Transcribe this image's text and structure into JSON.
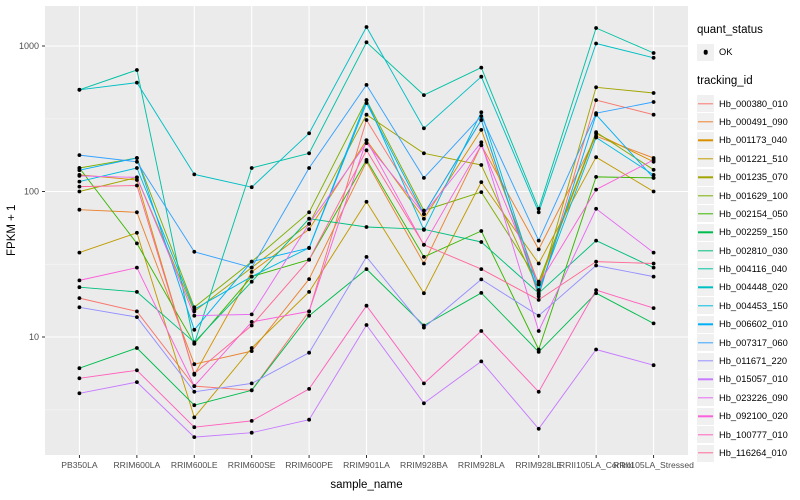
{
  "legend": {
    "quant_status_title": "quant_status",
    "quant_status_items": [
      {
        "label": "OK",
        "shape": "point",
        "color": "#000000"
      }
    ],
    "tracking_id_title": "tracking_id"
  },
  "chart_data": {
    "type": "line",
    "title": "",
    "xlabel": "sample_name",
    "ylabel": "FPKM + 1",
    "y_scale": "log10",
    "ylim": [
      1.55,
      1850
    ],
    "y_major_ticks": [
      10,
      100,
      1000
    ],
    "y_minor_ticks": [
      3.16,
      31.6,
      316
    ],
    "grid": true,
    "legend_position": "right",
    "panel_color": "#EBEBEB",
    "gridline_major_color": "#FFFFFF",
    "gridline_minor_color": "#F4F4F4",
    "point_color": "#000000",
    "quant_status": "OK",
    "x_categories": [
      "PB350LA",
      "RRIM600LA",
      "RRIM600LE",
      "RRIM600SE",
      "RRIM600PE",
      "RRIM901LA",
      "RRIM928BA",
      "RRIM928LA",
      "RRIM928LE",
      "RRII105LA_Control",
      "RRII105LA_Stressed"
    ],
    "series": [
      {
        "name": "Hb_000380_010",
        "color": "#F8766D",
        "values": [
          18.5,
          15,
          4.6,
          4.3,
          15,
          310,
          70,
          310,
          19,
          425,
          337
        ]
      },
      {
        "name": "Hb_000491_090",
        "color": "#EA8331",
        "values": [
          75,
          72,
          6.5,
          8,
          25,
          160,
          32,
          208,
          40,
          240,
          170
        ]
      },
      {
        "name": "Hb_001173_040",
        "color": "#D89000",
        "values": [
          130,
          120,
          5.5,
          28,
          55,
          225,
          65,
          265,
          23,
          250,
          160
        ]
      },
      {
        "name": "Hb_001221_510",
        "color": "#C09B00",
        "values": [
          38,
          52,
          2.8,
          8.4,
          20.4,
          85,
          20,
          116,
          32,
          172,
          100
        ]
      },
      {
        "name": "Hb_001235_070",
        "color": "#A3A500",
        "values": [
          100,
          125,
          15,
          30,
          60,
          337,
          183,
          152,
          21,
          520,
          475
        ]
      },
      {
        "name": "Hb_001629_100",
        "color": "#7CAE00",
        "values": [
          145,
          170,
          16,
          33,
          72,
          425,
          74,
          99,
          24,
          256,
          141
        ]
      },
      {
        "name": "Hb_002154_050",
        "color": "#39B600",
        "values": [
          145,
          44,
          9,
          26,
          34,
          165,
          35.5,
          53.5,
          8.2,
          126,
          124
        ]
      },
      {
        "name": "Hb_002259_150",
        "color": "#00BB4E",
        "values": [
          6.1,
          8.4,
          3.4,
          4.3,
          14,
          29.3,
          12,
          20.1,
          7.9,
          20,
          12.4
        ]
      },
      {
        "name": "Hb_002810_030",
        "color": "#00BF7D",
        "values": [
          22,
          20.4,
          9.2,
          24,
          65,
          57,
          55,
          45,
          20,
          46,
          30
        ]
      },
      {
        "name": "Hb_004116_040",
        "color": "#00C1A3",
        "values": [
          500,
          684,
          9,
          145,
          183,
          1060,
          460,
          710,
          76,
          1330,
          895
        ]
      },
      {
        "name": "Hb_004448_020",
        "color": "#00BFC4",
        "values": [
          500,
          560,
          131,
          107,
          251,
          1350,
          272,
          615,
          72,
          1040,
          830
        ]
      },
      {
        "name": "Hb_004453_150",
        "color": "#00BAE0",
        "values": [
          117,
          145,
          15.5,
          26,
          41,
          425,
          54.5,
          350,
          21,
          235,
          130
        ]
      },
      {
        "name": "Hb_006602_010",
        "color": "#00B0F6",
        "values": [
          140,
          170,
          11.2,
          33,
          40.8,
          405,
          70,
          310,
          19.7,
          337,
          124
        ]
      },
      {
        "name": "Hb_007317_060",
        "color": "#35A2FF",
        "values": [
          178,
          160,
          38.5,
          30,
          145,
          540,
          124,
          330,
          46,
          345,
          412
        ]
      },
      {
        "name": "Hb_011671_220",
        "color": "#9590FF",
        "values": [
          16,
          13.7,
          4.2,
          4.8,
          7.8,
          35.5,
          11.6,
          24.9,
          14,
          31,
          26
        ]
      },
      {
        "name": "Hb_015057_010",
        "color": "#C77CFF",
        "values": [
          4.1,
          4.9,
          2.05,
          2.2,
          2.7,
          12.1,
          3.5,
          6.8,
          2.34,
          8.2,
          6.4
        ]
      },
      {
        "name": "Hb_023226_090",
        "color": "#E76BF3",
        "values": [
          128,
          125,
          14,
          14.3,
          60,
          215,
          70,
          218,
          11,
          76,
          38
        ]
      },
      {
        "name": "Hb_092100_020",
        "color": "#FA62DB",
        "values": [
          24.5,
          30,
          4.6,
          12.7,
          15,
          225,
          43,
          208,
          23,
          103,
          165
        ]
      },
      {
        "name": "Hb_100777_010",
        "color": "#FF62BC",
        "values": [
          5.2,
          5.9,
          2.4,
          2.65,
          4.4,
          16.4,
          4.8,
          11,
          4.2,
          21,
          15.8
        ]
      },
      {
        "name": "Hb_116264_010",
        "color": "#FF6A98",
        "values": [
          108,
          110,
          5.6,
          12,
          34,
          192,
          43,
          29.3,
          18,
          33,
          32
        ]
      }
    ]
  }
}
